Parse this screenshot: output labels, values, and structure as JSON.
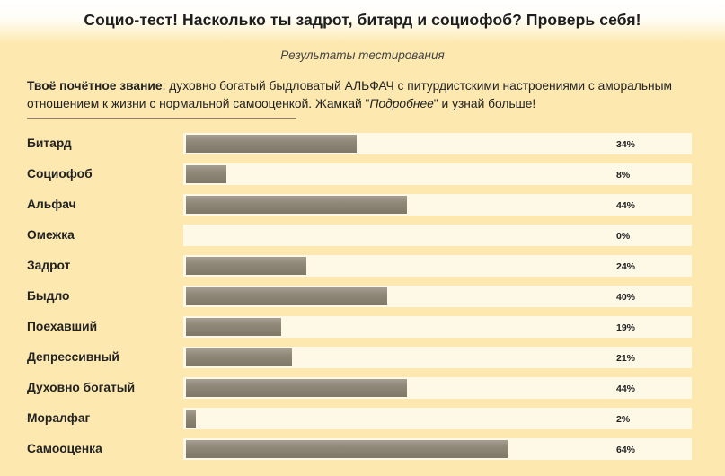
{
  "header": {
    "title": "Социо-тест! Насколько ты задрот, битард и социофоб? Проверь себя!"
  },
  "results": {
    "subtitle": "Результаты тестирования",
    "summary_label": "Твоё почётное звание",
    "summary_text": ": духовно богатый быдловатый АЛЬФАЧ с питурдистскими настроениями с аморальным отношением к жизни с нормальной самооценкой. Жамкай \"",
    "summary_link": "Подробнее",
    "summary_tail": "\" и узнай больше!"
  },
  "rows": [
    {
      "label": "Битард",
      "value": 34,
      "value_text": "34%"
    },
    {
      "label": "Социофоб",
      "value": 8,
      "value_text": "8%"
    },
    {
      "label": "Альфач",
      "value": 44,
      "value_text": "44%"
    },
    {
      "label": "Омежка",
      "value": 0,
      "value_text": "0%"
    },
    {
      "label": "Задрот",
      "value": 24,
      "value_text": "24%"
    },
    {
      "label": "Быдло",
      "value": 40,
      "value_text": "40%"
    },
    {
      "label": "Поехавший",
      "value": 19,
      "value_text": "19%"
    },
    {
      "label": "Депрессивный",
      "value": 21,
      "value_text": "21%"
    },
    {
      "label": "Духовно богатый",
      "value": 44,
      "value_text": "44%"
    },
    {
      "label": "Моралфаг",
      "value": 2,
      "value_text": "2%"
    },
    {
      "label": "Самооценка",
      "value": 64,
      "value_text": "64%"
    }
  ]
}
